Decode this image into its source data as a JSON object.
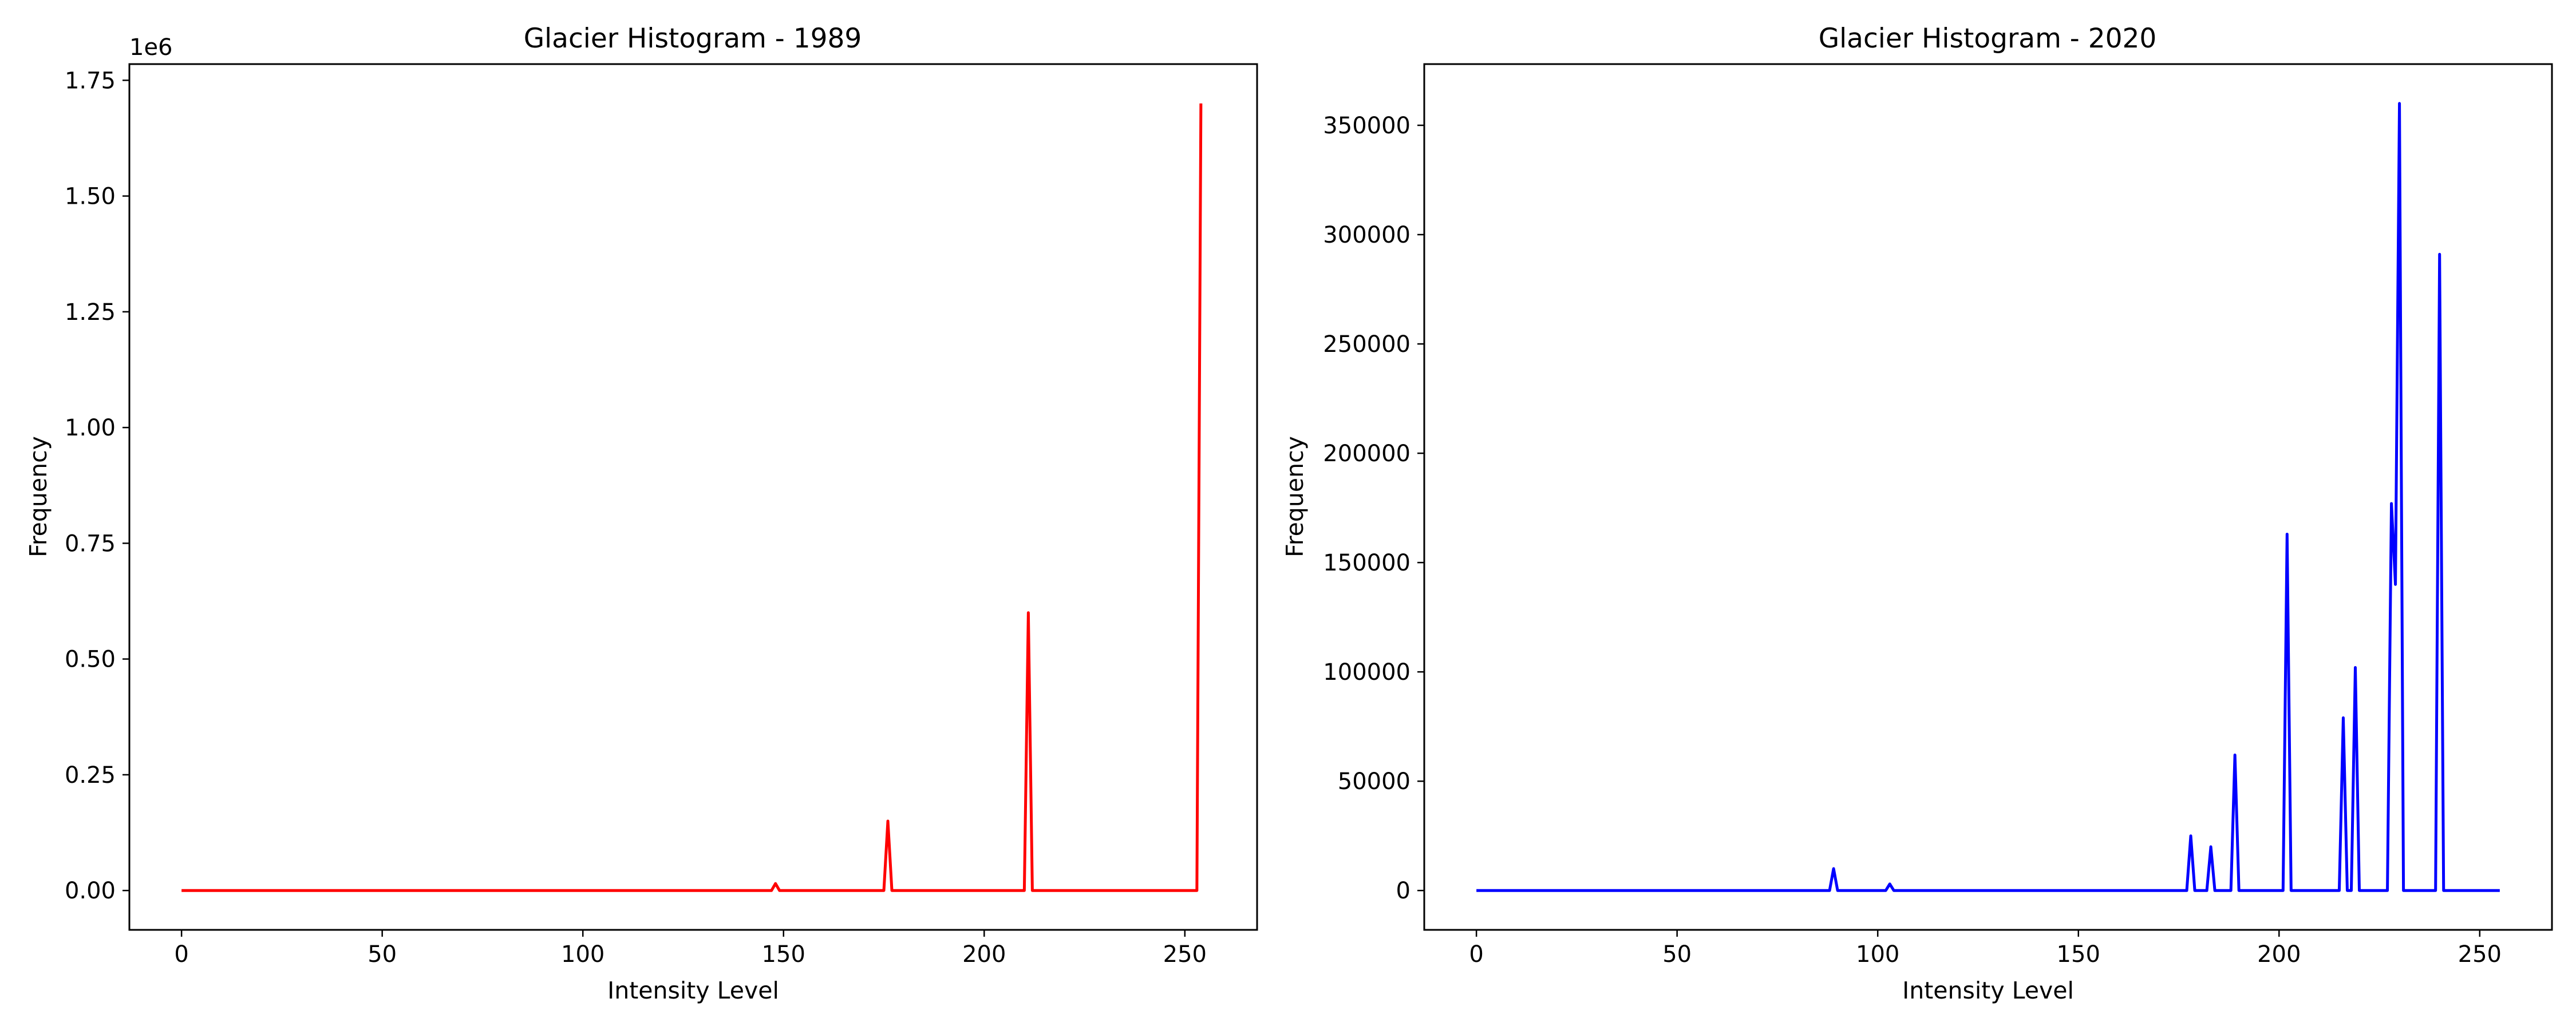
{
  "chart_data": [
    {
      "type": "line",
      "title": "Glacier Histogram - 1989",
      "xlabel": "Intensity Level",
      "ylabel": "Frequency",
      "y_offset_label": "1e6",
      "xlim": [
        -13,
        268
      ],
      "ylim": [
        -85000,
        1785000
      ],
      "x_ticks": [
        0,
        50,
        100,
        150,
        200,
        250
      ],
      "x_tick_labels": [
        "0",
        "50",
        "100",
        "150",
        "200",
        "250"
      ],
      "y_ticks": [
        0,
        250000,
        500000,
        750000,
        1000000,
        1250000,
        1500000,
        1750000
      ],
      "y_tick_labels": [
        "0.00",
        "0.25",
        "0.50",
        "0.75",
        "1.00",
        "1.25",
        "1.50",
        "1.75"
      ],
      "grid": false,
      "series": [
        {
          "color": "#ff0000",
          "x_min": 0,
          "x_max": 254,
          "baseline": 0,
          "peaks": [
            {
              "x": 148,
              "y": 15000
            },
            {
              "x": 176,
              "y": 150000
            },
            {
              "x": 211,
              "y": 600000
            },
            {
              "x": 254,
              "y": 1700000
            }
          ]
        }
      ]
    },
    {
      "type": "line",
      "title": "Glacier Histogram - 2020",
      "xlabel": "Intensity Level",
      "ylabel": "Frequency",
      "xlim": [
        -13,
        268
      ],
      "ylim": [
        -18000,
        378000
      ],
      "x_ticks": [
        0,
        50,
        100,
        150,
        200,
        250
      ],
      "x_tick_labels": [
        "0",
        "50",
        "100",
        "150",
        "200",
        "250"
      ],
      "y_ticks": [
        0,
        50000,
        100000,
        150000,
        200000,
        250000,
        300000,
        350000
      ],
      "y_tick_labels": [
        "0",
        "50000",
        "100000",
        "150000",
        "200000",
        "250000",
        "300000",
        "350000"
      ],
      "grid": false,
      "series": [
        {
          "color": "#0000ff",
          "x_min": 0,
          "x_max": 255,
          "baseline": 0,
          "peaks": [
            {
              "x": 89,
              "y": 10000
            },
            {
              "x": 103,
              "y": 3000
            },
            {
              "x": 178,
              "y": 25000
            },
            {
              "x": 183,
              "y": 20000
            },
            {
              "x": 189,
              "y": 62000
            },
            {
              "x": 202,
              "y": 163000
            },
            {
              "x": 216,
              "y": 79000
            },
            {
              "x": 219,
              "y": 102000
            },
            {
              "x": 228,
              "y": 177000
            },
            {
              "x": 229,
              "y": 140000
            },
            {
              "x": 230,
              "y": 360000
            },
            {
              "x": 240,
              "y": 291000
            }
          ]
        }
      ]
    }
  ]
}
